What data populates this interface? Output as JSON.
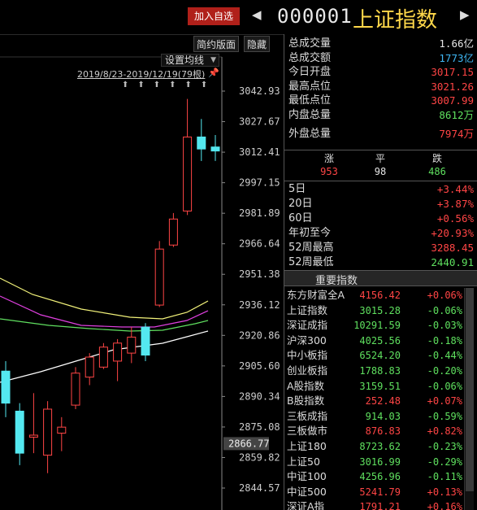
{
  "header": {
    "add_watchlist": "加入自选",
    "prev_icon": "◀",
    "next_icon": "▶",
    "code": "000001",
    "name": "上证指数"
  },
  "toolbar": {
    "simple_layout": "简约版面",
    "hide": "隐藏",
    "ma_setting": "设置均线",
    "date_range": "2019/8/23-2019/12/19(79根)",
    "arrows": "⬆⬆⬆⬆⬆⬆"
  },
  "price_axis": {
    "ticks": [
      "3042.93",
      "3027.67",
      "3012.41",
      "2997.15",
      "2981.89",
      "2966.64",
      "2951.38",
      "2936.12",
      "2920.86",
      "2905.60",
      "2890.34",
      "2875.08",
      "2859.82",
      "2844.57"
    ],
    "current_label": "2866.77"
  },
  "candles": [
    {
      "o": 2903,
      "c": 2887,
      "h": 2908,
      "l": 2880,
      "up": false
    },
    {
      "o": 2883,
      "c": 2862,
      "h": 2887,
      "l": 2856,
      "up": false
    },
    {
      "o": 2870,
      "c": 2871,
      "h": 2892,
      "l": 2862,
      "up": true
    },
    {
      "o": 2861,
      "c": 2884,
      "h": 2888,
      "l": 2852,
      "up": true
    },
    {
      "o": 2872,
      "c": 2875,
      "h": 2880,
      "l": 2863,
      "up": true
    },
    {
      "o": 2886,
      "c": 2902,
      "h": 2905,
      "l": 2884,
      "up": true
    },
    {
      "o": 2900,
      "c": 2910,
      "h": 2912,
      "l": 2896,
      "up": true
    },
    {
      "o": 2905,
      "c": 2915,
      "h": 2917,
      "l": 2904,
      "up": true
    },
    {
      "o": 2908,
      "c": 2917,
      "h": 2919,
      "l": 2898,
      "up": true
    },
    {
      "o": 2912,
      "c": 2920,
      "h": 2925,
      "l": 2907,
      "up": true
    },
    {
      "o": 2925,
      "c": 2911,
      "h": 2927,
      "l": 2908,
      "up": false
    },
    {
      "o": 2936,
      "c": 2964,
      "h": 2968,
      "l": 2935,
      "up": true
    },
    {
      "o": 2966,
      "c": 2979,
      "h": 2982,
      "l": 2965,
      "up": true
    },
    {
      "o": 2983,
      "c": 3020,
      "h": 3039,
      "l": 2981,
      "up": true
    },
    {
      "o": 3020,
      "c": 3014,
      "h": 3029,
      "l": 3008,
      "up": false
    },
    {
      "o": 3015,
      "c": 3013,
      "h": 3021,
      "l": 3008,
      "up": false
    }
  ],
  "stats": [
    {
      "label": "总成交量",
      "value": "1.66亿",
      "color": "#e6e6e6"
    },
    {
      "label": "总成交额",
      "value": "1773亿",
      "color": "#3fb6f2"
    },
    {
      "label": "今日开盘",
      "value": "3017.15",
      "color": "#ff4545"
    },
    {
      "label": "最高点位",
      "value": "3021.26",
      "color": "#ff4545"
    },
    {
      "label": "最低点位",
      "value": "3007.99",
      "color": "#ff4545"
    },
    {
      "label": "内盘总量",
      "value": "8612万",
      "color": "#5fe05f"
    },
    {
      "label": "外盘总量",
      "value": "7974万",
      "color": "#ff4545"
    }
  ],
  "advance_decline": {
    "headers": [
      "涨",
      "平",
      "跌"
    ],
    "values": [
      "953",
      "98",
      "486"
    ],
    "colors": [
      "#ff4545",
      "#e6e6e6",
      "#5fe05f"
    ]
  },
  "periods": [
    {
      "label": "5日",
      "value": "+3.44%",
      "color": "#ff4545"
    },
    {
      "label": "20日",
      "value": "+3.87%",
      "color": "#ff4545"
    },
    {
      "label": "60日",
      "value": "+0.56%",
      "color": "#ff4545"
    },
    {
      "label": "年初至今",
      "value": "+20.93%",
      "color": "#ff4545"
    },
    {
      "label": "52周最高",
      "value": "3288.45",
      "color": "#ff4545"
    },
    {
      "label": "52周最低",
      "value": "2440.91",
      "color": "#5fe05f"
    }
  ],
  "indices_title": "重要指数",
  "indices": [
    {
      "name": "东方财富全A",
      "price": "4156.42",
      "change": "+0.06%",
      "up": true
    },
    {
      "name": "上证指数",
      "price": "3015.28",
      "change": "-0.06%",
      "up": false
    },
    {
      "name": "深证成指",
      "price": "10291.59",
      "change": "-0.03%",
      "up": false
    },
    {
      "name": "沪深300",
      "price": "4025.56",
      "change": "-0.18%",
      "up": false
    },
    {
      "name": "中小板指",
      "price": "6524.20",
      "change": "-0.44%",
      "up": false
    },
    {
      "name": "创业板指",
      "price": "1788.83",
      "change": "-0.20%",
      "up": false
    },
    {
      "name": "A股指数",
      "price": "3159.51",
      "change": "-0.06%",
      "up": false
    },
    {
      "name": "B股指数",
      "price": "252.48",
      "change": "+0.07%",
      "up": true
    },
    {
      "name": "三板成指",
      "price": "914.03",
      "change": "-0.59%",
      "up": false
    },
    {
      "name": "三板做市",
      "price": "876.83",
      "change": "+0.82%",
      "up": true
    },
    {
      "name": "上证180",
      "price": "8723.62",
      "change": "-0.23%",
      "up": false
    },
    {
      "name": "上证50",
      "price": "3016.99",
      "change": "-0.29%",
      "up": false
    },
    {
      "name": "中证100",
      "price": "4256.96",
      "change": "-0.11%",
      "up": false
    },
    {
      "name": "中证500",
      "price": "5241.79",
      "change": "+0.13%",
      "up": true
    },
    {
      "name": "深证A指",
      "price": "1791.21",
      "change": "+0.16%",
      "up": true
    }
  ],
  "colors": {
    "up": "#ff4545",
    "down": "#5fe05f",
    "candle_down": "#54e8f0",
    "ma5": "#ffffff",
    "ma10": "#f2f27a",
    "ma20": "#e040e0",
    "ma60": "#60e060"
  }
}
